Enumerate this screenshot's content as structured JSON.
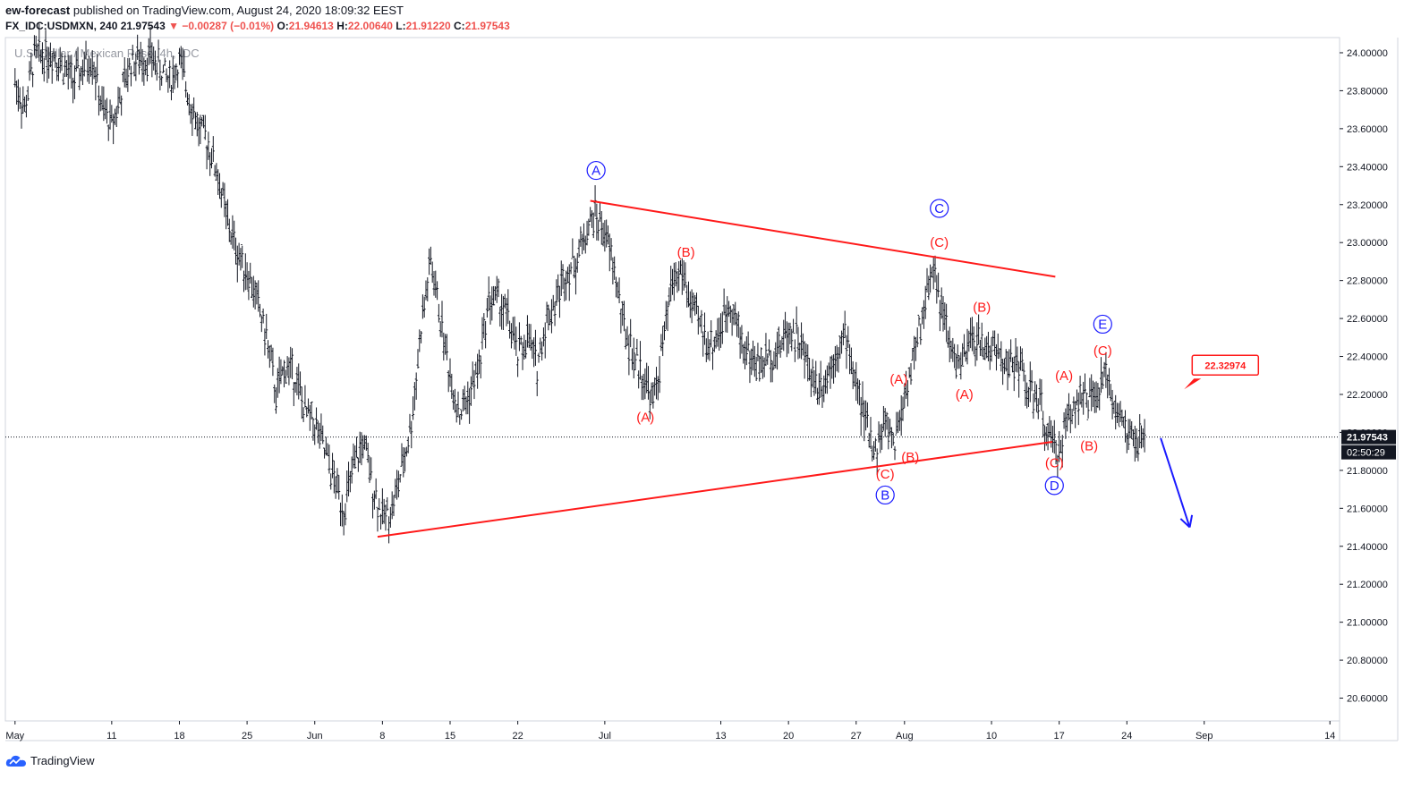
{
  "header": {
    "author": "ew-forecast",
    "published_text": " published on TradingView.com, August 24, 2020 18:09:32 EEST",
    "symbol": "FX_IDC:USDMXN, 240",
    "last": "21.97543",
    "change_arrow": "▼",
    "change": "−0.00287 (−0.01%)",
    "o_label": "O:",
    "o_value": "21.94613",
    "h_label": "H:",
    "h_value": "22.00640",
    "l_label": "L:",
    "l_value": "21.91220",
    "c_label": "C:",
    "c_value": "21.97543"
  },
  "watermark": "U.S. Dollar / Mexican Peso, 4h, IDC",
  "footer": {
    "brand": "TradingView",
    "brand_icon": "tradingview-cloud-icon"
  },
  "colors": {
    "wave_red": "#ff1a1a",
    "wave_blue": "#1a1aff",
    "bars": "#131722",
    "price_tag": "#131722"
  },
  "price_label": "21.97543",
  "countdown": "02:50:29",
  "target_label": "22.32974",
  "chart_data": {
    "type": "ohlc",
    "title": "U.S. Dollar / Mexican Peso, 4h, IDC",
    "y_ticks": [
      "24.00000",
      "23.80000",
      "23.60000",
      "23.40000",
      "23.20000",
      "23.00000",
      "22.80000",
      "22.60000",
      "22.40000",
      "22.20000",
      "22.00000",
      "21.80000",
      "21.60000",
      "21.40000",
      "21.20000",
      "21.00000",
      "20.80000",
      "20.60000"
    ],
    "ylim": [
      20.48,
      24.08
    ],
    "x_ticks": [
      {
        "label": "May",
        "day": 0
      },
      {
        "label": "11",
        "day": 10
      },
      {
        "label": "18",
        "day": 17
      },
      {
        "label": "25",
        "day": 24
      },
      {
        "label": "Jun",
        "day": 31
      },
      {
        "label": "8",
        "day": 38
      },
      {
        "label": "15",
        "day": 45
      },
      {
        "label": "22",
        "day": 52
      },
      {
        "label": "Jul",
        "day": 61
      },
      {
        "label": "13",
        "day": 73
      },
      {
        "label": "20",
        "day": 80
      },
      {
        "label": "27",
        "day": 87
      },
      {
        "label": "Aug",
        "day": 92
      },
      {
        "label": "10",
        "day": 101
      },
      {
        "label": "17",
        "day": 108
      },
      {
        "label": "24",
        "day": 115
      },
      {
        "label": "Sep",
        "day": 123
      },
      {
        "label": "14",
        "day": 136
      }
    ],
    "xlim": [
      -1,
      137
    ],
    "current_price": 21.97543,
    "price_path": [
      [
        0,
        23.85
      ],
      [
        1,
        23.7
      ],
      [
        2,
        23.98
      ],
      [
        4,
        24.0
      ],
      [
        6,
        23.85
      ],
      [
        8,
        23.98
      ],
      [
        9,
        23.7
      ],
      [
        10,
        23.62
      ],
      [
        12,
        23.95
      ],
      [
        14,
        23.98
      ],
      [
        16,
        23.85
      ],
      [
        17,
        23.95
      ],
      [
        19,
        23.6
      ],
      [
        20,
        23.52
      ],
      [
        21,
        23.35
      ],
      [
        22,
        23.1
      ],
      [
        23,
        22.95
      ],
      [
        24,
        22.85
      ],
      [
        25,
        22.7
      ],
      [
        26,
        22.5
      ],
      [
        27,
        22.2
      ],
      [
        28,
        22.35
      ],
      [
        29,
        22.3
      ],
      [
        30,
        22.1
      ],
      [
        31,
        22.05
      ],
      [
        32,
        21.9
      ],
      [
        33,
        21.75
      ],
      [
        34,
        21.6
      ],
      [
        35,
        21.8
      ],
      [
        36,
        21.95
      ],
      [
        37,
        21.72
      ],
      [
        38,
        21.55
      ],
      [
        39,
        21.6
      ],
      [
        40,
        21.8
      ],
      [
        41,
        22.05
      ],
      [
        42,
        22.55
      ],
      [
        43,
        22.9
      ],
      [
        44,
        22.6
      ],
      [
        45,
        22.3
      ],
      [
        46,
        22.1
      ],
      [
        47,
        22.2
      ],
      [
        48,
        22.35
      ],
      [
        49,
        22.7
      ],
      [
        50,
        22.7
      ],
      [
        51,
        22.6
      ],
      [
        52,
        22.4
      ],
      [
        53,
        22.5
      ],
      [
        54,
        22.35
      ],
      [
        55,
        22.6
      ],
      [
        56,
        22.7
      ],
      [
        57,
        22.85
      ],
      [
        58,
        22.9
      ],
      [
        59,
        23.05
      ],
      [
        60,
        23.15
      ],
      [
        61,
        23.05
      ],
      [
        62,
        22.85
      ],
      [
        63,
        22.55
      ],
      [
        64,
        22.4
      ],
      [
        65,
        22.3
      ],
      [
        66,
        22.15
      ],
      [
        67,
        22.45
      ],
      [
        68,
        22.8
      ],
      [
        69,
        22.85
      ],
      [
        70,
        22.65
      ],
      [
        71,
        22.55
      ],
      [
        72,
        22.45
      ],
      [
        73,
        22.55
      ],
      [
        74,
        22.7
      ],
      [
        75,
        22.5
      ],
      [
        76,
        22.4
      ],
      [
        77,
        22.35
      ],
      [
        78,
        22.4
      ],
      [
        79,
        22.45
      ],
      [
        80,
        22.55
      ],
      [
        81,
        22.5
      ],
      [
        82,
        22.35
      ],
      [
        83,
        22.25
      ],
      [
        84,
        22.3
      ],
      [
        85,
        22.45
      ],
      [
        86,
        22.5
      ],
      [
        87,
        22.25
      ],
      [
        88,
        22.05
      ],
      [
        89,
        21.9
      ],
      [
        90,
        22.05
      ],
      [
        91,
        21.95
      ],
      [
        92,
        22.2
      ],
      [
        93,
        22.4
      ],
      [
        94,
        22.65
      ],
      [
        95,
        22.9
      ],
      [
        96,
        22.6
      ],
      [
        97,
        22.4
      ],
      [
        98,
        22.35
      ],
      [
        99,
        22.5
      ],
      [
        100,
        22.45
      ],
      [
        101,
        22.45
      ],
      [
        102,
        22.4
      ],
      [
        103,
        22.35
      ],
      [
        104,
        22.35
      ],
      [
        105,
        22.2
      ],
      [
        106,
        22.15
      ],
      [
        107,
        21.95
      ],
      [
        108,
        21.9
      ],
      [
        109,
        22.1
      ],
      [
        110,
        22.2
      ],
      [
        111,
        22.15
      ],
      [
        112,
        22.2
      ],
      [
        113,
        22.3
      ],
      [
        114,
        22.1
      ],
      [
        115,
        22.0
      ],
      [
        116,
        21.95
      ],
      [
        117,
        21.97
      ]
    ],
    "trendlines": [
      {
        "from": [
          59.5,
          23.22
        ],
        "to": [
          107.6,
          22.82
        ],
        "color": "#ff1a1a"
      },
      {
        "from": [
          37.5,
          21.45
        ],
        "to": [
          107.3,
          21.95
        ],
        "color": "#ff1a1a"
      }
    ],
    "projection_arrow": {
      "from": [
        118.5,
        21.97
      ],
      "to": [
        121.5,
        21.5
      ],
      "color": "#1a1aff"
    },
    "target_pointer": {
      "day": 121.2,
      "price": 22.34
    },
    "wave_labels": [
      {
        "text": "A",
        "circled": true,
        "day": 60.1,
        "price": 23.38,
        "color": "#1a1aff"
      },
      {
        "text": "B",
        "circled": true,
        "day": 90.0,
        "price": 21.67,
        "color": "#1a1aff"
      },
      {
        "text": "C",
        "circled": true,
        "day": 95.6,
        "price": 23.18,
        "color": "#1a1aff"
      },
      {
        "text": "D",
        "circled": true,
        "day": 107.5,
        "price": 21.72,
        "color": "#1a1aff"
      },
      {
        "text": "E",
        "circled": true,
        "day": 112.5,
        "price": 22.57,
        "color": "#1a1aff"
      },
      {
        "text": "(A)",
        "circled": false,
        "day": 65.2,
        "price": 22.08,
        "color": "#ff1a1a"
      },
      {
        "text": "(B)",
        "circled": false,
        "day": 69.4,
        "price": 22.95,
        "color": "#ff1a1a"
      },
      {
        "text": "(A)",
        "circled": false,
        "day": 91.4,
        "price": 22.28,
        "color": "#ff1a1a"
      },
      {
        "text": "(B)",
        "circled": false,
        "day": 92.6,
        "price": 21.87,
        "color": "#ff1a1a"
      },
      {
        "text": "(C)",
        "circled": false,
        "day": 90.0,
        "price": 21.78,
        "color": "#ff1a1a"
      },
      {
        "text": "(C)",
        "circled": false,
        "day": 95.6,
        "price": 23.0,
        "color": "#ff1a1a"
      },
      {
        "text": "(B)",
        "circled": false,
        "day": 100.0,
        "price": 22.66,
        "color": "#ff1a1a"
      },
      {
        "text": "(A)",
        "circled": false,
        "day": 98.2,
        "price": 22.2,
        "color": "#ff1a1a"
      },
      {
        "text": "(A)",
        "circled": false,
        "day": 108.5,
        "price": 22.3,
        "color": "#ff1a1a"
      },
      {
        "text": "(C)",
        "circled": false,
        "day": 107.5,
        "price": 21.84,
        "color": "#ff1a1a"
      },
      {
        "text": "(B)",
        "circled": false,
        "day": 111.1,
        "price": 21.93,
        "color": "#ff1a1a"
      },
      {
        "text": "(C)",
        "circled": false,
        "day": 112.5,
        "price": 22.43,
        "color": "#ff1a1a"
      }
    ]
  }
}
